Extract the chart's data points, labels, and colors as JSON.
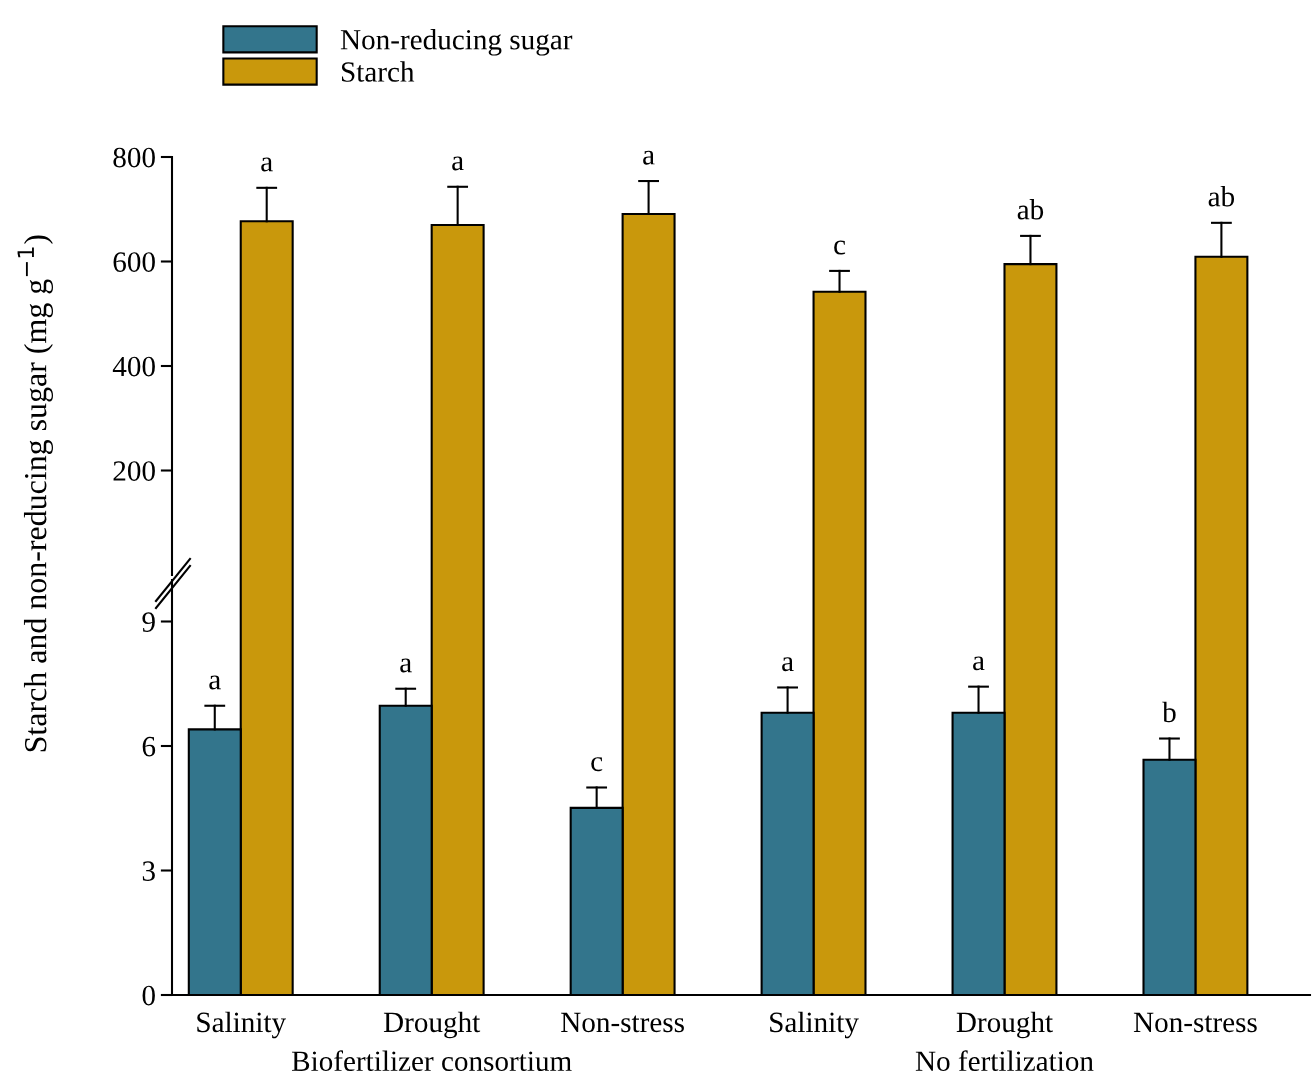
{
  "chart_data": [
    {
      "type": "bar",
      "categories": [
        null,
        null,
        null,
        null,
        null,
        null
      ],
      "ylim": [
        0,
        800
      ],
      "yticks": [
        200,
        400,
        600,
        800
      ],
      "tick_labels": "y",
      "legend": "top",
      "series": [
        {
          "name": "Non-reducing sugar",
          "color": "#33758c",
          "values": [
            null,
            null,
            null,
            null,
            null,
            null
          ]
        },
        {
          "name": "Starch",
          "color": "#c9980c",
          "values": [
            677,
            670,
            691,
            542,
            595,
            609
          ],
          "errors": [
            [
              677,
              741
            ],
            [
              670,
              743
            ],
            [
              691,
              754
            ],
            [
              542,
              582
            ],
            [
              595,
              649
            ],
            [
              609,
              674
            ]
          ],
          "value_labels": [
            "a",
            "a",
            "a",
            "c",
            "ab",
            "ab"
          ]
        }
      ]
    },
    {
      "type": "bar",
      "categories": [
        "Salinity",
        "Drought",
        "Non-stress",
        "Salinity",
        "Drought",
        "Non-stress"
      ],
      "ylim": [
        0,
        10
      ],
      "yticks": [
        0,
        3,
        6,
        9
      ],
      "ylabel": "Starch and non-reducing sugar (mg g$^{−1}$)",
      "annotations": [
        "Biofertilizer consortium",
        "No fertilization"
      ],
      "series": [
        {
          "color": "#33758c",
          "values": [
            6.4,
            6.97,
            4.51,
            6.8,
            6.8,
            5.67
          ],
          "errors": [
            [
              6.4,
              6.97
            ],
            [
              6.97,
              7.38
            ],
            [
              4.51,
              5.0
            ],
            [
              6.8,
              7.41
            ],
            [
              6.8,
              7.43
            ],
            [
              5.67,
              6.18
            ]
          ],
          "value_labels": [
            "a",
            "a",
            "c",
            "a",
            "a",
            "b"
          ]
        },
        {
          "values": [
            null,
            null,
            null,
            null,
            null,
            null
          ]
        }
      ]
    }
  ]
}
